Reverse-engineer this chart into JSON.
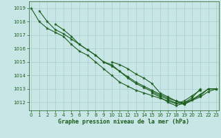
{
  "background_color": "#c8e6e6",
  "grid_color": "#a8cccc",
  "line_color": "#1a5c1a",
  "marker_color": "#1a5c1a",
  "xlabel": "Graphe pression niveau de la mer (hPa)",
  "xlabel_color": "#1a5c1a",
  "ylim": [
    1011.4,
    1019.5
  ],
  "xlim": [
    -0.3,
    23.3
  ],
  "yticks": [
    1012,
    1013,
    1014,
    1015,
    1016,
    1017,
    1018,
    1019
  ],
  "xticks": [
    0,
    1,
    2,
    3,
    4,
    5,
    6,
    7,
    8,
    9,
    10,
    11,
    12,
    13,
    14,
    15,
    16,
    17,
    18,
    19,
    20,
    21,
    22,
    23
  ],
  "series": [
    [
      1019.0,
      1018.0,
      1017.5,
      1017.2,
      1016.9,
      1016.3,
      1015.8,
      1015.5,
      1015.0,
      1014.5,
      1014.0,
      1013.5,
      1013.2,
      1012.9,
      1012.7,
      1012.5,
      1012.3,
      1012.1,
      1011.9,
      1012.1,
      1012.5,
      1012.9,
      null,
      null
    ],
    [
      null,
      1018.8,
      1018.0,
      1017.4,
      1017.1,
      1016.7,
      1016.3,
      1015.9,
      1015.5,
      1015.0,
      1014.7,
      1014.3,
      1013.9,
      1013.5,
      1013.2,
      1012.9,
      1012.6,
      1012.3,
      1012.1,
      1011.95,
      1012.2,
      1012.6,
      1013.0,
      1013.0
    ],
    [
      null,
      null,
      null,
      1017.8,
      1017.4,
      1016.9,
      1016.3,
      1015.9,
      1015.5,
      1015.0,
      1014.8,
      1014.3,
      1013.8,
      1013.4,
      1013.1,
      1012.8,
      1012.5,
      1012.2,
      1011.95,
      1011.85,
      1012.2,
      1012.5,
      1013.0,
      1013.0
    ],
    [
      null,
      null,
      null,
      null,
      null,
      null,
      null,
      null,
      null,
      null,
      1015.0,
      1014.8,
      1014.5,
      1014.1,
      1013.8,
      1013.4,
      1012.7,
      1012.4,
      1012.1,
      1011.85,
      1012.15,
      1012.4,
      1012.8,
      1013.0
    ],
    [
      null,
      null,
      null,
      null,
      null,
      null,
      null,
      null,
      null,
      null,
      null,
      null,
      null,
      null,
      null,
      1012.7,
      1012.4,
      1012.0,
      1011.75,
      1011.95,
      1012.35,
      1013.0,
      null,
      null
    ]
  ]
}
